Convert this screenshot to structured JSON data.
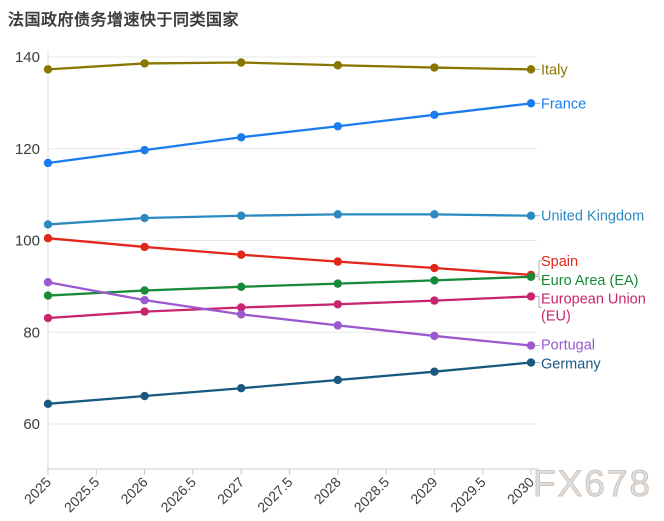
{
  "header": {
    "title": "法国政府债务增速快于同类国家"
  },
  "watermark": "FX678",
  "chart_data": {
    "type": "line",
    "title": "法国政府债务增速快于同类国家",
    "x": [
      2025,
      2026,
      2027,
      2028,
      2029,
      2030
    ],
    "xlim": [
      2025,
      2030
    ],
    "x_tick_labels": [
      "2025",
      "2025.5",
      "2026",
      "2026.5",
      "2027",
      "2027.5",
      "2028",
      "2028.5",
      "2029",
      "2029.5",
      "2030"
    ],
    "y_ticks": [
      60,
      80,
      100,
      120,
      140
    ],
    "ylim": [
      50,
      142
    ],
    "grid": true,
    "legend_position": "line-end-labels-right",
    "series": [
      {
        "name": "Italy",
        "color": "#8a7500",
        "values": [
          137.3,
          138.6,
          138.8,
          138.2,
          137.7,
          137.3
        ]
      },
      {
        "name": "France",
        "color": "#1b7ced",
        "values": [
          116.9,
          119.7,
          122.5,
          124.9,
          127.4,
          129.9
        ]
      },
      {
        "name": "United Kingdom",
        "color": "#2b8bc1",
        "values": [
          103.5,
          104.9,
          105.4,
          105.7,
          105.7,
          105.4
        ]
      },
      {
        "name": "Spain",
        "color": "#e3261a",
        "values": [
          100.5,
          98.6,
          96.9,
          95.4,
          94.0,
          92.5
        ]
      },
      {
        "name": "Euro Area (EA)",
        "color": "#178a38",
        "values": [
          88.0,
          89.1,
          89.9,
          90.6,
          91.3,
          92.1
        ]
      },
      {
        "name": "European Union (EU)",
        "color": "#c9256f",
        "values": [
          83.1,
          84.5,
          85.4,
          86.1,
          86.9,
          87.8
        ]
      },
      {
        "name": "Portugal",
        "color": "#9b59d0",
        "values": [
          90.9,
          87.0,
          83.9,
          81.5,
          79.2,
          77.1
        ]
      },
      {
        "name": "Germany",
        "color": "#19587f",
        "values": [
          64.4,
          66.1,
          67.8,
          69.6,
          71.4,
          73.4
        ]
      }
    ]
  }
}
